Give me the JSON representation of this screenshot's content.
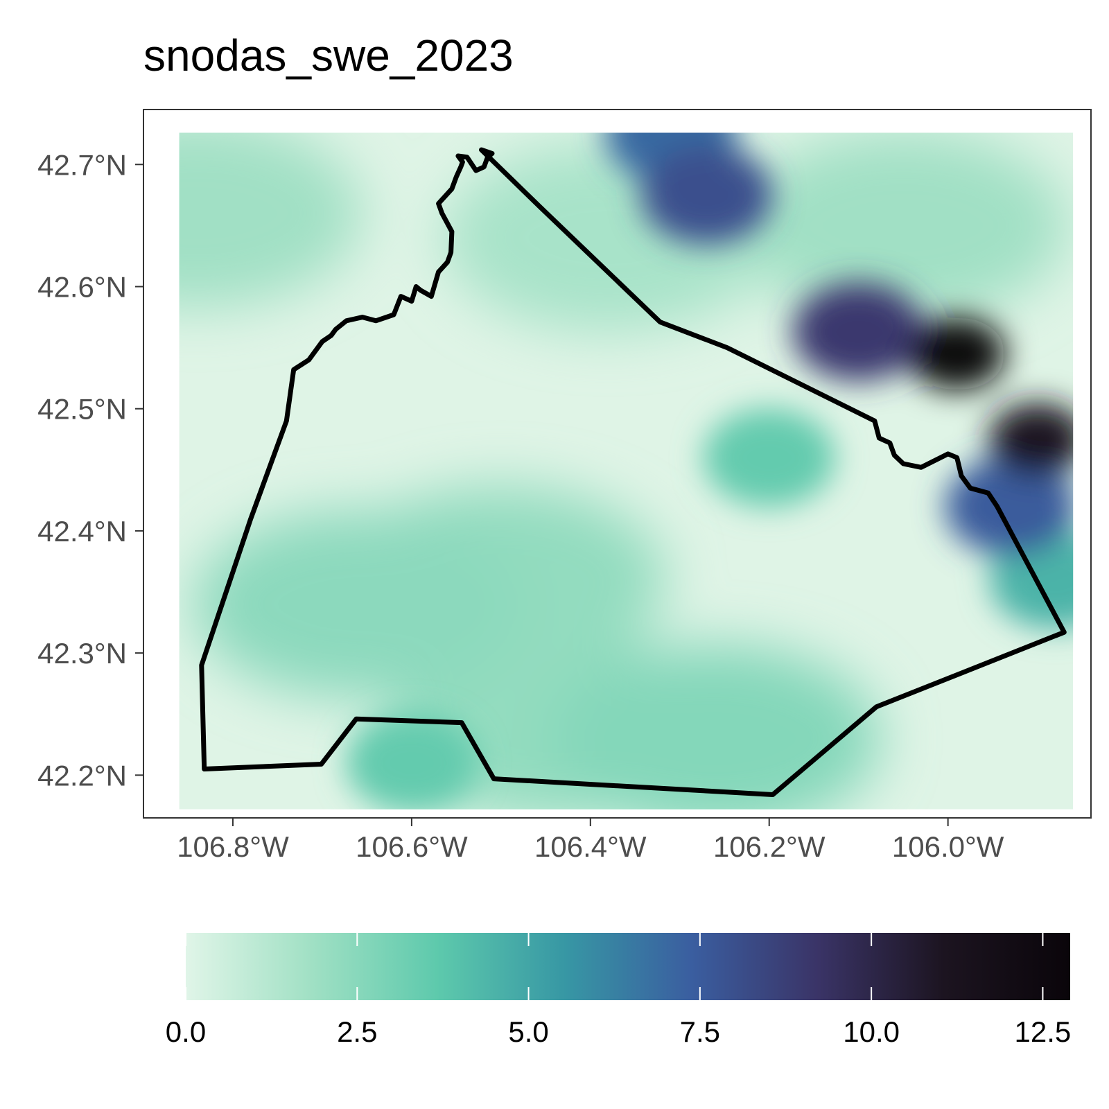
{
  "title": "snodas_swe_2023",
  "map": {
    "type": "raster-with-outline",
    "xlim": [
      -106.9,
      -105.84
    ],
    "ylim": [
      42.165,
      42.745
    ],
    "x_ticks": [
      {
        "value": -106.8,
        "label": "106.8°W"
      },
      {
        "value": -106.6,
        "label": "106.6°W"
      },
      {
        "value": -106.4,
        "label": "106.4°W"
      },
      {
        "value": -106.2,
        "label": "106.2°W"
      },
      {
        "value": -106.0,
        "label": "106.0°W"
      }
    ],
    "y_ticks": [
      {
        "value": 42.7,
        "label": "42.7°N"
      },
      {
        "value": 42.6,
        "label": "42.6°N"
      },
      {
        "value": 42.5,
        "label": "42.5°N"
      },
      {
        "value": 42.4,
        "label": "42.4°N"
      },
      {
        "value": 42.3,
        "label": "42.3°N"
      },
      {
        "value": 42.2,
        "label": "42.2°N"
      }
    ],
    "raster_extent": {
      "west": -106.86,
      "east": -105.86,
      "south": 42.172,
      "north": 42.726
    },
    "swe_hotspots": [
      {
        "lon": -106.27,
        "lat": 42.675,
        "value": 8.0
      },
      {
        "lon": -106.31,
        "lat": 42.725,
        "value": 7.0
      },
      {
        "lon": -106.1,
        "lat": 42.563,
        "value": 9.0
      },
      {
        "lon": -105.99,
        "lat": 42.545,
        "value": 12.5
      },
      {
        "lon": -105.9,
        "lat": 42.475,
        "value": 11.0
      },
      {
        "lon": -105.93,
        "lat": 42.42,
        "value": 7.5
      },
      {
        "lon": -105.88,
        "lat": 42.36,
        "value": 4.5
      },
      {
        "lon": -106.2,
        "lat": 42.46,
        "value": 3.5
      },
      {
        "lon": -106.6,
        "lat": 42.21,
        "value": 3.5
      },
      {
        "lon": -106.44,
        "lat": 42.24,
        "value": 2.2
      },
      {
        "lon": -106.26,
        "lat": 42.23,
        "value": 2.6
      },
      {
        "lon": -106.66,
        "lat": 42.34,
        "value": 2.4
      },
      {
        "lon": -106.5,
        "lat": 42.36,
        "value": 2.2
      },
      {
        "lon": -106.84,
        "lat": 42.66,
        "value": 1.8
      },
      {
        "lon": -106.38,
        "lat": 42.64,
        "value": 1.6
      },
      {
        "lon": -106.05,
        "lat": 42.65,
        "value": 1.8
      }
    ],
    "outline": [
      [
        -106.522,
        42.712
      ],
      [
        -106.456,
        42.665
      ],
      [
        -106.322,
        42.571
      ],
      [
        -106.247,
        42.55
      ],
      [
        -106.082,
        42.49
      ],
      [
        -106.077,
        42.476
      ],
      [
        -106.065,
        42.472
      ],
      [
        -106.06,
        42.462
      ],
      [
        -106.05,
        42.455
      ],
      [
        -106.03,
        42.452
      ],
      [
        -106.0,
        42.463
      ],
      [
        -105.99,
        42.46
      ],
      [
        -105.985,
        42.445
      ],
      [
        -105.975,
        42.435
      ],
      [
        -105.955,
        42.431
      ],
      [
        -105.945,
        42.42
      ],
      [
        -105.87,
        42.317
      ],
      [
        -106.08,
        42.256
      ],
      [
        -106.196,
        42.184
      ],
      [
        -106.508,
        42.197
      ],
      [
        -106.544,
        42.243
      ],
      [
        -106.662,
        42.246
      ],
      [
        -106.701,
        42.209
      ],
      [
        -106.832,
        42.205
      ],
      [
        -106.835,
        42.29
      ],
      [
        -106.78,
        42.41
      ],
      [
        -106.74,
        42.49
      ],
      [
        -106.732,
        42.532
      ],
      [
        -106.715,
        42.54
      ],
      [
        -106.7,
        42.555
      ],
      [
        -106.69,
        42.56
      ],
      [
        -106.685,
        42.565
      ],
      [
        -106.673,
        42.572
      ],
      [
        -106.655,
        42.575
      ],
      [
        -106.64,
        42.572
      ],
      [
        -106.62,
        42.577
      ],
      [
        -106.612,
        42.592
      ],
      [
        -106.6,
        42.588
      ],
      [
        -106.595,
        42.6
      ],
      [
        -106.59,
        42.597
      ],
      [
        -106.578,
        42.592
      ],
      [
        -106.57,
        42.612
      ],
      [
        -106.56,
        42.62
      ],
      [
        -106.556,
        42.628
      ],
      [
        -106.555,
        42.645
      ],
      [
        -106.566,
        42.66
      ],
      [
        -106.57,
        42.668
      ],
      [
        -106.555,
        42.68
      ],
      [
        -106.55,
        42.69
      ],
      [
        -106.545,
        42.698
      ],
      [
        -106.543,
        42.702
      ],
      [
        -106.548,
        42.707
      ],
      [
        -106.538,
        42.706
      ],
      [
        -106.528,
        42.695
      ],
      [
        -106.519,
        42.698
      ],
      [
        -106.515,
        42.706
      ],
      [
        -106.51,
        42.709
      ],
      [
        -106.522,
        42.712
      ]
    ]
  },
  "colorbar": {
    "min": 0.0,
    "max": 12.9,
    "ticks": [
      {
        "value": 0.0,
        "label": "0.0"
      },
      {
        "value": 2.5,
        "label": "2.5"
      },
      {
        "value": 5.0,
        "label": "5.0"
      },
      {
        "value": 7.5,
        "label": "7.5"
      },
      {
        "value": 10.0,
        "label": "10.0"
      },
      {
        "value": 12.5,
        "label": "12.5"
      }
    ],
    "stops": [
      "#e0f5e8",
      "#a0e0c4",
      "#5dc9ac",
      "#3797a4",
      "#3a5ea0",
      "#3a3467",
      "#1c1420",
      "#0a050a"
    ]
  }
}
